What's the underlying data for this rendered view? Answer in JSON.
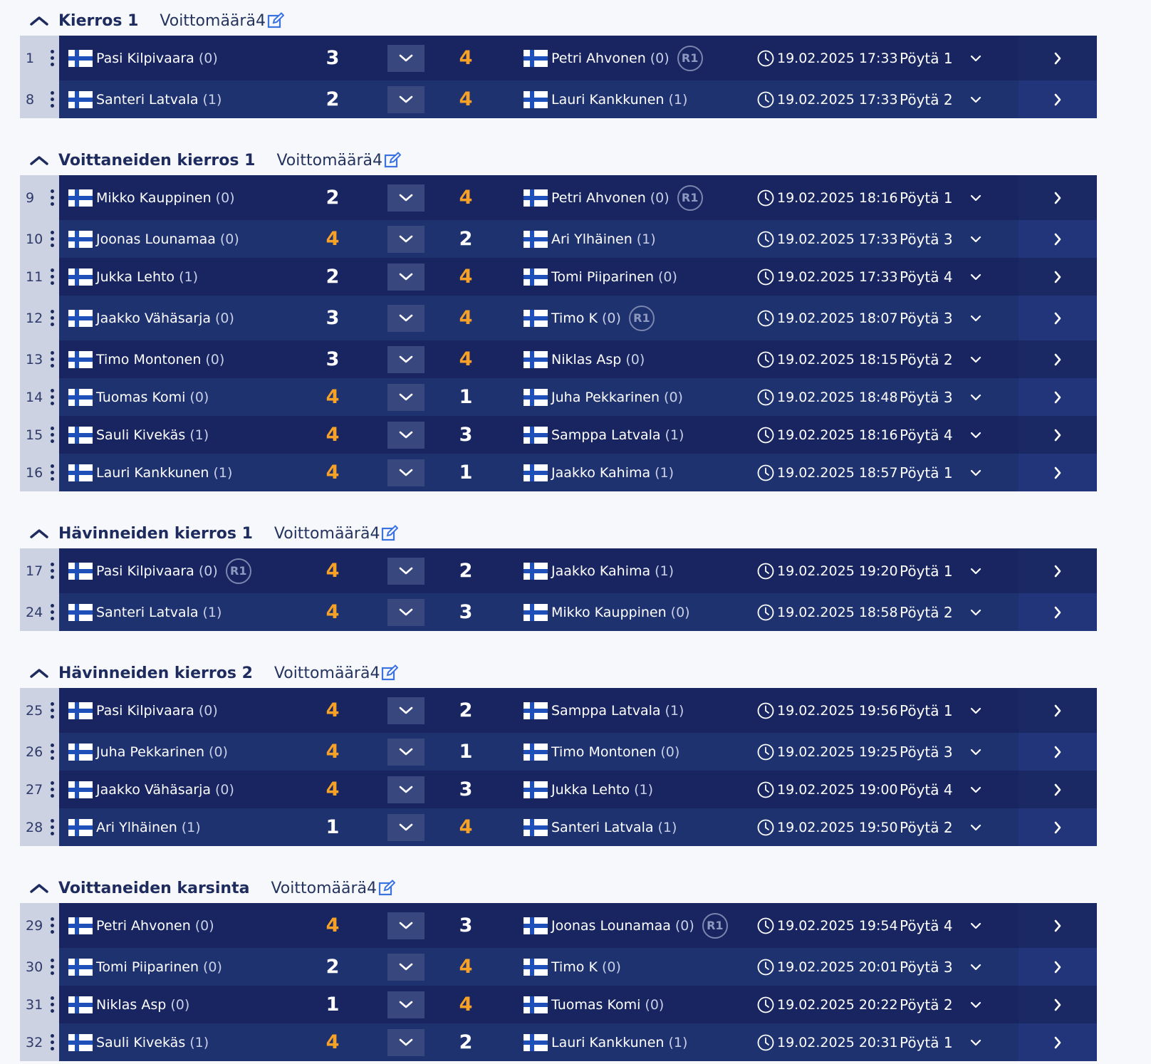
{
  "wins_label": "Voittomäärä",
  "sections": [
    {
      "title": "Kierros 1",
      "wins": "4",
      "matches": [
        {
          "no": "1",
          "p1": "Pasi Kilpivaara",
          "p1w": "(0)",
          "s1": "3",
          "s2": "4",
          "p2": "Petri Ahvonen",
          "p2w": "(0)",
          "badge2": "R1",
          "time": "19.02.2025 17:33",
          "table": "Pöytä 1"
        },
        {
          "no": "8",
          "p1": "Santeri Latvala",
          "p1w": "(1)",
          "s1": "2",
          "s2": "4",
          "p2": "Lauri Kankkunen",
          "p2w": "(1)",
          "time": "19.02.2025 17:33",
          "table": "Pöytä 2"
        }
      ]
    },
    {
      "title": "Voittaneiden kierros 1",
      "wins": "4",
      "matches": [
        {
          "no": "9",
          "p1": "Mikko Kauppinen",
          "p1w": "(0)",
          "s1": "2",
          "s2": "4",
          "p2": "Petri Ahvonen",
          "p2w": "(0)",
          "badge2": "R1",
          "time": "19.02.2025 18:16",
          "table": "Pöytä 1"
        },
        {
          "no": "10",
          "p1": "Joonas Lounamaa",
          "p1w": "(0)",
          "s1": "4",
          "s2": "2",
          "p2": "Ari Ylhäinen",
          "p2w": "(1)",
          "time": "19.02.2025 17:33",
          "table": "Pöytä 3"
        },
        {
          "no": "11",
          "p1": "Jukka Lehto",
          "p1w": "(1)",
          "s1": "2",
          "s2": "4",
          "p2": "Tomi Piiparinen",
          "p2w": "(0)",
          "time": "19.02.2025 17:33",
          "table": "Pöytä 4"
        },
        {
          "no": "12",
          "p1": "Jaakko Vähäsarja",
          "p1w": "(0)",
          "s1": "3",
          "s2": "4",
          "p2": "Timo K",
          "p2w": "(0)",
          "badge2": "R1",
          "time": "19.02.2025 18:07",
          "table": "Pöytä 3"
        },
        {
          "no": "13",
          "p1": "Timo Montonen",
          "p1w": "(0)",
          "s1": "3",
          "s2": "4",
          "p2": "Niklas Asp",
          "p2w": "(0)",
          "time": "19.02.2025 18:15",
          "table": "Pöytä 2"
        },
        {
          "no": "14",
          "p1": "Tuomas Komi",
          "p1w": "(0)",
          "s1": "4",
          "s2": "1",
          "p2": "Juha Pekkarinen",
          "p2w": "(0)",
          "time": "19.02.2025 18:48",
          "table": "Pöytä 3"
        },
        {
          "no": "15",
          "p1": "Sauli Kivekäs",
          "p1w": "(1)",
          "s1": "4",
          "s2": "3",
          "p2": "Samppa Latvala",
          "p2w": "(1)",
          "time": "19.02.2025 18:16",
          "table": "Pöytä 4"
        },
        {
          "no": "16",
          "p1": "Lauri Kankkunen",
          "p1w": "(1)",
          "s1": "4",
          "s2": "1",
          "p2": "Jaakko Kahima",
          "p2w": "(1)",
          "time": "19.02.2025 18:57",
          "table": "Pöytä 1"
        }
      ]
    },
    {
      "title": "Hävinneiden kierros 1",
      "wins": "4",
      "matches": [
        {
          "no": "17",
          "p1": "Pasi Kilpivaara",
          "p1w": "(0)",
          "badge1": "R1",
          "s1": "4",
          "s2": "2",
          "p2": "Jaakko Kahima",
          "p2w": "(1)",
          "time": "19.02.2025 19:20",
          "table": "Pöytä 1"
        },
        {
          "no": "24",
          "p1": "Santeri Latvala",
          "p1w": "(1)",
          "s1": "4",
          "s2": "3",
          "p2": "Mikko Kauppinen",
          "p2w": "(0)",
          "time": "19.02.2025 18:58",
          "table": "Pöytä 2"
        }
      ]
    },
    {
      "title": "Hävinneiden kierros 2",
      "wins": "4",
      "matches": [
        {
          "no": "25",
          "p1": "Pasi Kilpivaara",
          "p1w": "(0)",
          "s1": "4",
          "s2": "2",
          "p2": "Samppa Latvala",
          "p2w": "(1)",
          "time": "19.02.2025 19:56",
          "table": "Pöytä 1"
        },
        {
          "no": "26",
          "p1": "Juha Pekkarinen",
          "p1w": "(0)",
          "s1": "4",
          "s2": "1",
          "p2": "Timo Montonen",
          "p2w": "(0)",
          "time": "19.02.2025 19:25",
          "table": "Pöytä 3"
        },
        {
          "no": "27",
          "p1": "Jaakko Vähäsarja",
          "p1w": "(0)",
          "s1": "4",
          "s2": "3",
          "p2": "Jukka Lehto",
          "p2w": "(1)",
          "time": "19.02.2025 19:00",
          "table": "Pöytä 4"
        },
        {
          "no": "28",
          "p1": "Ari Ylhäinen",
          "p1w": "(1)",
          "s1": "1",
          "s2": "4",
          "p2": "Santeri Latvala",
          "p2w": "(1)",
          "time": "19.02.2025 19:50",
          "table": "Pöytä 2"
        }
      ]
    },
    {
      "title": "Voittaneiden karsinta",
      "wins": "4",
      "matches": [
        {
          "no": "29",
          "p1": "Petri Ahvonen",
          "p1w": "(0)",
          "s1": "4",
          "s2": "3",
          "p2": "Joonas Lounamaa",
          "p2w": "(0)",
          "badge2": "R1",
          "time": "19.02.2025 19:54",
          "table": "Pöytä 4"
        },
        {
          "no": "30",
          "p1": "Tomi Piiparinen",
          "p1w": "(0)",
          "s1": "2",
          "s2": "4",
          "p2": "Timo K",
          "p2w": "(0)",
          "time": "19.02.2025 20:01",
          "table": "Pöytä 3"
        },
        {
          "no": "31",
          "p1": "Niklas Asp",
          "p1w": "(0)",
          "s1": "1",
          "s2": "4",
          "p2": "Tuomas Komi",
          "p2w": "(0)",
          "time": "19.02.2025 20:22",
          "table": "Pöytä 2"
        },
        {
          "no": "32",
          "p1": "Sauli Kivekäs",
          "p1w": "(1)",
          "s1": "4",
          "s2": "2",
          "p2": "Lauri Kankkunen",
          "p2w": "(1)",
          "time": "19.02.2025 20:31",
          "table": "Pöytä 1"
        }
      ]
    }
  ]
}
